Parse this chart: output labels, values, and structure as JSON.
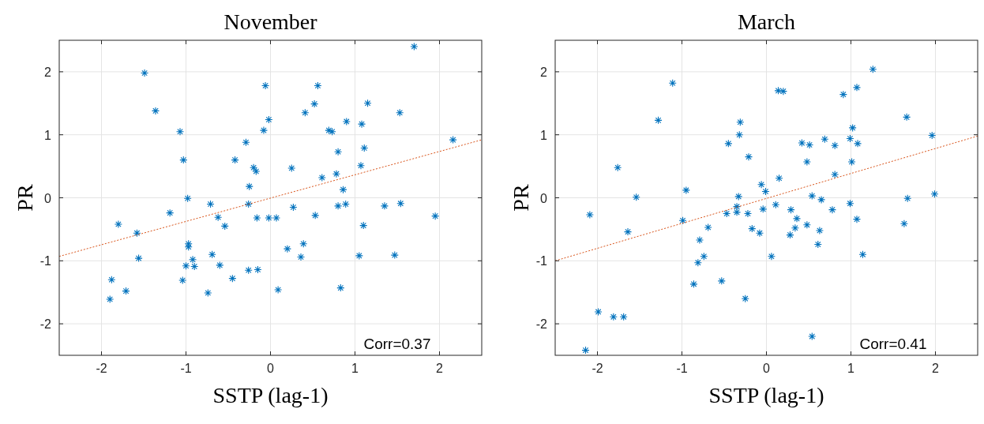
{
  "chart_data": [
    {
      "type": "scatter",
      "title": "November",
      "xlabel": "SSTP (lag-1)",
      "ylabel": "PR",
      "xlim": [
        -2.5,
        2.5
      ],
      "ylim": [
        -2.5,
        2.5
      ],
      "xticks": [
        -2,
        -1,
        0,
        1,
        2
      ],
      "yticks": [
        -2,
        -1,
        0,
        1,
        2
      ],
      "grid": true,
      "annotations": [
        "Corr=0.37"
      ],
      "series": [
        {
          "type": "scatter",
          "marker": "cross",
          "color": "#0072bd",
          "x": [
            1.7,
            -1.49,
            -0.06,
            0.56,
            0.52,
            1.15,
            -1.36,
            0.41,
            1.53,
            -0.02,
            0.9,
            1.08,
            -1.07,
            -0.08,
            0.69,
            0.73,
            2.16,
            -0.29,
            0.8,
            1.11,
            -1.03,
            -0.42,
            -0.2,
            -0.17,
            0.25,
            1.07,
            0.61,
            0.78,
            -0.25,
            0.86,
            -0.98,
            -0.71,
            -0.26,
            0.27,
            0.8,
            0.89,
            1.35,
            1.54,
            -1.19,
            -0.62,
            -0.16,
            -0.02,
            0.07,
            0.53,
            1.95,
            -1.8,
            -0.54,
            1.1,
            -1.58,
            -0.97,
            -0.97,
            0.2,
            0.39,
            -1.56,
            -0.92,
            -0.69,
            0.36,
            1.05,
            1.47,
            -1.0,
            -0.9,
            -0.6,
            -0.26,
            -0.15,
            -1.88,
            -1.04,
            -0.45,
            -1.71,
            0.09,
            0.83,
            -1.9,
            -0.74
          ],
          "values": [
            2.4,
            1.98,
            1.78,
            1.78,
            1.49,
            1.5,
            1.38,
            1.35,
            1.35,
            1.24,
            1.21,
            1.17,
            1.05,
            1.07,
            1.07,
            1.05,
            0.92,
            0.88,
            0.73,
            0.79,
            0.6,
            0.6,
            0.48,
            0.42,
            0.47,
            0.51,
            0.32,
            0.38,
            0.18,
            0.13,
            -0.01,
            -0.1,
            -0.1,
            -0.15,
            -0.13,
            -0.1,
            -0.13,
            -0.09,
            -0.24,
            -0.31,
            -0.32,
            -0.32,
            -0.32,
            -0.28,
            -0.29,
            -0.42,
            -0.45,
            -0.44,
            -0.56,
            -0.73,
            -0.78,
            -0.81,
            -0.73,
            -0.96,
            -0.98,
            -0.9,
            -0.94,
            -0.92,
            -0.91,
            -1.08,
            -1.09,
            -1.07,
            -1.15,
            -1.14,
            -1.3,
            -1.31,
            -1.28,
            -1.48,
            -1.46,
            -1.43,
            -1.61,
            -1.51
          ]
        },
        {
          "type": "line",
          "marker": "none",
          "line_style": "dotted",
          "color": "#d95319",
          "x": [
            -2.5,
            2.5
          ],
          "values": [
            -0.93,
            0.92
          ]
        }
      ]
    },
    {
      "type": "scatter",
      "title": "March",
      "xlabel": "SSTP (lag-1)",
      "ylabel": "PR",
      "xlim": [
        -2.5,
        2.5
      ],
      "ylim": [
        -2.5,
        2.5
      ],
      "xticks": [
        -2,
        -1,
        0,
        1,
        2
      ],
      "yticks": [
        -2,
        -1,
        0,
        1,
        2
      ],
      "grid": true,
      "annotations": [
        "Corr=0.41"
      ],
      "series": [
        {
          "type": "scatter",
          "marker": "cross",
          "color": "#0072bd",
          "x": [
            1.26,
            -1.11,
            0.14,
            0.2,
            1.07,
            0.91,
            -1.28,
            -0.31,
            1.66,
            1.02,
            -0.32,
            1.96,
            0.99,
            0.69,
            -0.45,
            0.42,
            0.51,
            1.08,
            0.81,
            -0.21,
            0.48,
            1.01,
            -1.76,
            0.81,
            0.15,
            -0.06,
            -0.01,
            -0.95,
            -1.54,
            -0.33,
            0.54,
            1.67,
            1.99,
            0.65,
            -0.35,
            0.11,
            0.99,
            -0.35,
            -0.47,
            -0.22,
            -0.04,
            0.29,
            0.78,
            -2.09,
            -0.99,
            0.36,
            1.07,
            1.63,
            0.48,
            -0.69,
            -0.17,
            0.34,
            -1.64,
            -0.08,
            0.28,
            0.63,
            -0.79,
            0.61,
            -0.74,
            0.06,
            1.14,
            -0.81,
            -0.86,
            -0.53,
            -0.25,
            -1.99,
            -1.81,
            -1.69,
            0.54,
            -2.14
          ],
          "values": [
            2.04,
            1.82,
            1.7,
            1.69,
            1.75,
            1.64,
            1.23,
            1.2,
            1.28,
            1.11,
            1.0,
            0.99,
            0.94,
            0.93,
            0.86,
            0.87,
            0.84,
            0.86,
            0.83,
            0.65,
            0.57,
            0.57,
            0.48,
            0.37,
            0.31,
            0.21,
            0.1,
            0.12,
            0.01,
            0.02,
            0.03,
            -0.01,
            0.06,
            -0.03,
            -0.14,
            -0.11,
            -0.09,
            -0.23,
            -0.25,
            -0.25,
            -0.18,
            -0.19,
            -0.19,
            -0.27,
            -0.36,
            -0.33,
            -0.34,
            -0.41,
            -0.43,
            -0.47,
            -0.49,
            -0.48,
            -0.54,
            -0.56,
            -0.59,
            -0.52,
            -0.67,
            -0.74,
            -0.93,
            -0.93,
            -0.9,
            -1.03,
            -1.37,
            -1.32,
            -1.6,
            -1.81,
            -1.89,
            -1.89,
            -2.2,
            -2.42
          ]
        },
        {
          "type": "line",
          "marker": "none",
          "line_style": "dotted",
          "color": "#d95319",
          "x": [
            -2.5,
            2.5
          ],
          "values": [
            -1.0,
            0.98
          ]
        }
      ]
    }
  ]
}
